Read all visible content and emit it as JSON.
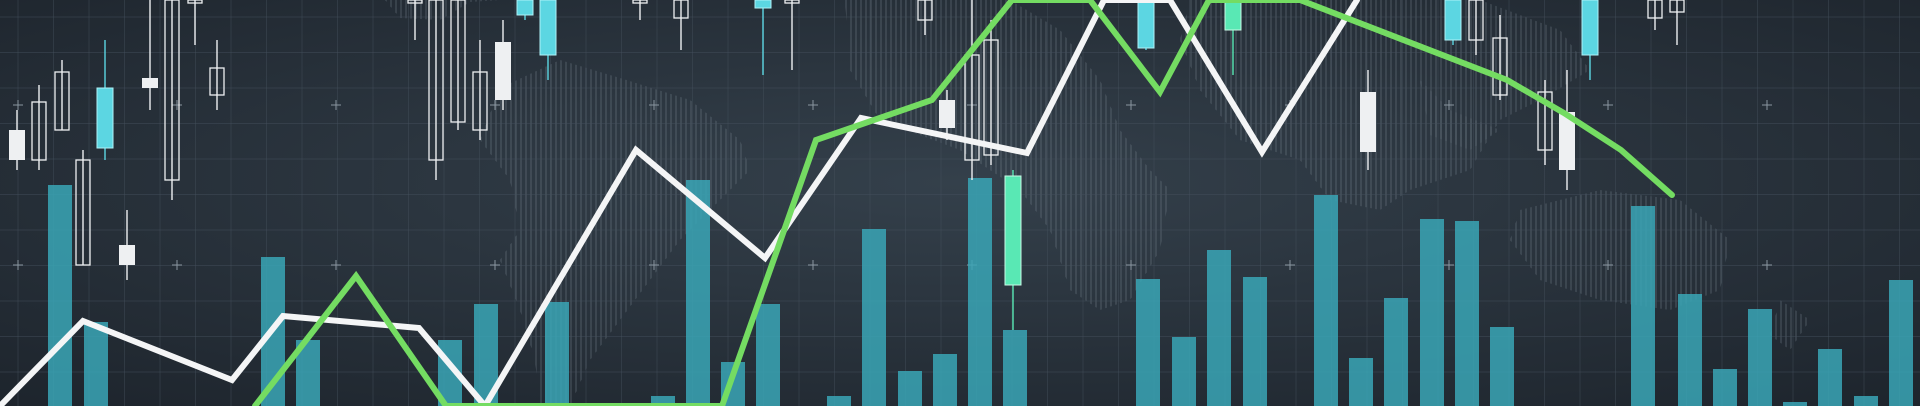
{
  "colors": {
    "background_center": "#34404b",
    "background_edge": "#1d242c",
    "grid": "#46525e",
    "map": "#6e7b86",
    "volume_bar": "#3aa6b6",
    "candle_white": "#eef0f2",
    "candle_cyan": "#5cd6e2",
    "candle_green": "#59e8b4",
    "line_white": "#f4f5f6",
    "line_green": "#74dc62"
  },
  "icons": [
    "grid-crosshair-icon"
  ],
  "scene": {
    "description_elements": [
      "world-map",
      "grid",
      "volume-bars",
      "candlesticks",
      "white-trend-line",
      "green-trend-line"
    ]
  }
}
